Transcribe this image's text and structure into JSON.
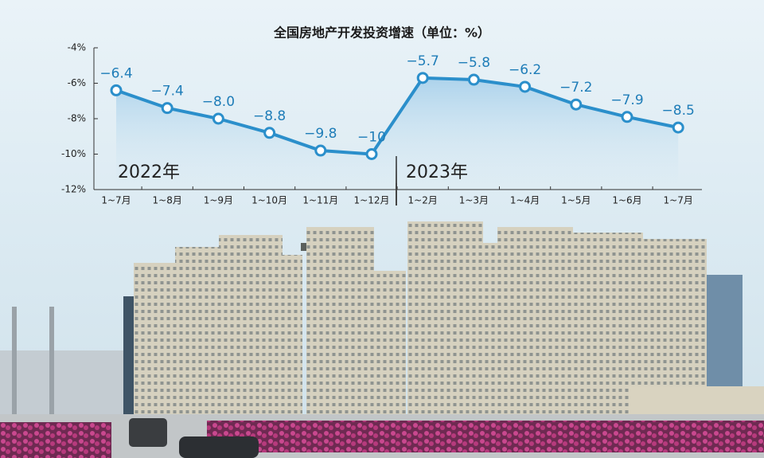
{
  "chart_data": {
    "type": "line",
    "title": "全国房地产开发投资增速（单位：%）",
    "categories": [
      "1~7月",
      "1~8月",
      "1~9月",
      "1~10月",
      "1~11月",
      "1~12月",
      "1~2月",
      "1~3月",
      "1~4月",
      "1~5月",
      "1~6月",
      "1~7月"
    ],
    "values": [
      -6.4,
      -7.4,
      -8.0,
      -8.8,
      -9.8,
      -10,
      -5.7,
      -5.8,
      -6.2,
      -7.2,
      -7.9,
      -8.5
    ],
    "value_labels": [
      "−6.4",
      "−7.4",
      "−8.0",
      "−8.8",
      "−9.8",
      "−10",
      "−5.7",
      "−5.8",
      "−6.2",
      "−7.2",
      "−7.9",
      "−8.5"
    ],
    "color": "#2b8fcb",
    "ylim": [
      -12,
      -4
    ],
    "yticks": [
      {
        "value": -4,
        "label": "-4%"
      },
      {
        "value": -6,
        "label": "-6%"
      },
      {
        "value": -8,
        "label": "-8%"
      },
      {
        "value": -10,
        "label": "-10%"
      },
      {
        "value": -12,
        "label": "-12%"
      }
    ],
    "annotations": [
      {
        "text": "2022年"
      },
      {
        "text": "2023年"
      }
    ]
  }
}
